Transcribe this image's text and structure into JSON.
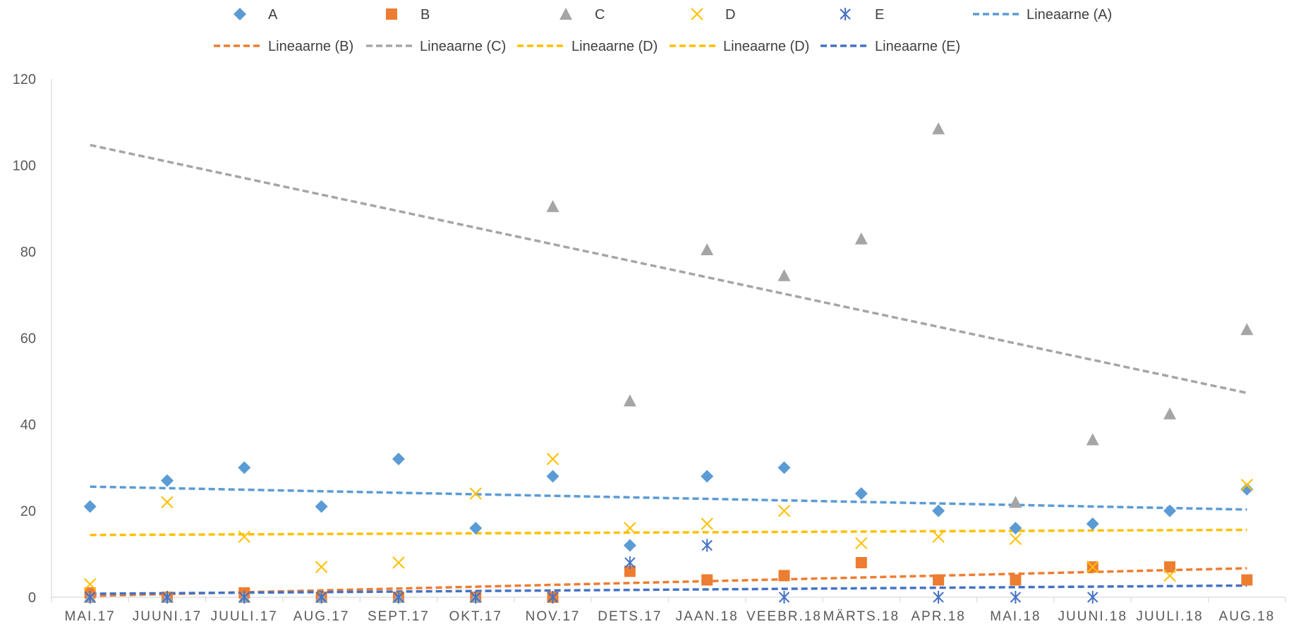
{
  "chart_data": {
    "type": "scatter",
    "categories": [
      "MAI.17",
      "JUUNI.17",
      "JUULI.17",
      "AUG.17",
      "SEPT.17",
      "OKT.17",
      "NOV.17",
      "DETS.17",
      "JAAN.18",
      "VEEBR.18",
      "MÄRTS.18",
      "APR.18",
      "MAI.18",
      "JUUNI.18",
      "JUULI.18",
      "AUG.18"
    ],
    "ylim": [
      0,
      120
    ],
    "yticks": [
      0,
      20,
      40,
      60,
      80,
      100,
      120
    ],
    "grid": false,
    "legend_position": "top",
    "series": [
      {
        "name": "A",
        "marker": "diamond",
        "color": "#5B9BD5",
        "values": [
          21,
          27,
          30,
          21,
          32,
          16,
          28,
          12,
          28,
          30,
          24,
          20,
          16,
          17,
          20,
          25
        ]
      },
      {
        "name": "B",
        "marker": "square",
        "color": "#ED7D31",
        "values": [
          1,
          0,
          1,
          0,
          0,
          0,
          0,
          6,
          4,
          5,
          8,
          4,
          4,
          7,
          7,
          4
        ]
      },
      {
        "name": "C",
        "marker": "triangle",
        "color": "#A5A5A5",
        "values": [
          0,
          0,
          0,
          0,
          0,
          0,
          90.5,
          45.5,
          80.5,
          74.5,
          83,
          108.5,
          22,
          36.5,
          42.5,
          62
        ]
      },
      {
        "name": "D",
        "marker": "x",
        "color": "#FFC000",
        "values": [
          3,
          22,
          14,
          7,
          8,
          24,
          32,
          16,
          17,
          20,
          12.5,
          14,
          13.5,
          7,
          5,
          26
        ]
      },
      {
        "name": "E",
        "marker": "star",
        "color": "#4472C4",
        "values": [
          0,
          0,
          0,
          0,
          0,
          0,
          0,
          8,
          12,
          0,
          null,
          0,
          0,
          0,
          null,
          null
        ]
      }
    ],
    "trendlines": [
      {
        "name": "Lineaarne (A)",
        "color": "#5B9BD5",
        "start": 25.6,
        "end": 20.3
      },
      {
        "name": "Lineaarne (B)",
        "color": "#ED7D31",
        "start": 0.3,
        "end": 6.7
      },
      {
        "name": "Lineaarne (C)",
        "color": "#A5A5A5",
        "start": 104.7,
        "end": 47.3
      },
      {
        "name": "Lineaarne (D)",
        "color": "#FFC000",
        "start": 14.4,
        "end": 15.6
      },
      {
        "name": "Lineaarne (D)",
        "color": "#FFC000",
        "start": null,
        "end": null
      },
      {
        "name": "Lineaarne (E)",
        "color": "#4472C4",
        "start": 0.8,
        "end": 2.7
      }
    ]
  }
}
